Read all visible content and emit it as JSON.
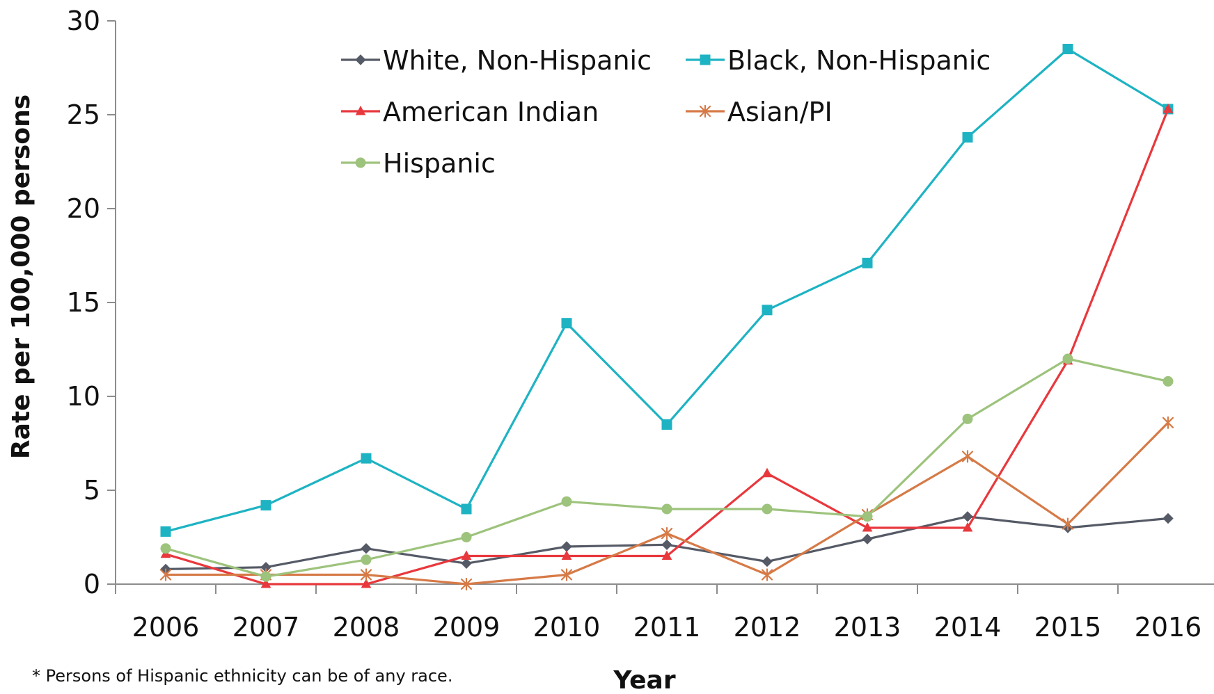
{
  "chart_data": {
    "type": "line",
    "title": "",
    "xlabel": "Year",
    "ylabel": "Rate per 100,000 persons",
    "categories": [
      "2006",
      "2007",
      "2008",
      "2009",
      "2010",
      "2011",
      "2012",
      "2013",
      "2014",
      "2015",
      "2016"
    ],
    "ylim": [
      0,
      30
    ],
    "yticks": [
      0,
      5,
      10,
      15,
      20,
      25,
      30
    ],
    "grid": false,
    "legend_position": "top",
    "series": [
      {
        "name": "White, Non-Hispanic",
        "color": "#555a66",
        "marker": "diamond",
        "values": [
          0.8,
          0.9,
          1.9,
          1.1,
          2.0,
          2.1,
          1.2,
          2.4,
          3.6,
          3.0,
          3.5
        ]
      },
      {
        "name": "Black, Non-Hispanic",
        "color": "#1eb3c3",
        "marker": "square",
        "values": [
          2.8,
          4.2,
          6.7,
          4.0,
          13.9,
          8.5,
          14.6,
          17.1,
          23.8,
          28.5,
          25.3
        ]
      },
      {
        "name": "American Indian",
        "color": "#e8383d",
        "marker": "triangle",
        "values": [
          1.6,
          0.0,
          0.0,
          1.5,
          1.5,
          1.5,
          5.9,
          3.0,
          3.0,
          11.9,
          25.3
        ]
      },
      {
        "name": "Asian/PI",
        "color": "#d67a47",
        "marker": "star",
        "values": [
          0.5,
          0.5,
          0.5,
          0.0,
          0.5,
          2.7,
          0.5,
          3.7,
          6.8,
          3.2,
          8.6
        ]
      },
      {
        "name": "Hispanic",
        "color": "#9dc37c",
        "marker": "circle",
        "values": [
          1.9,
          0.4,
          1.3,
          2.5,
          4.4,
          4.0,
          4.0,
          3.6,
          8.8,
          12.0,
          10.8
        ]
      }
    ],
    "footnote": "* Persons of Hispanic ethnicity can be of any race."
  }
}
